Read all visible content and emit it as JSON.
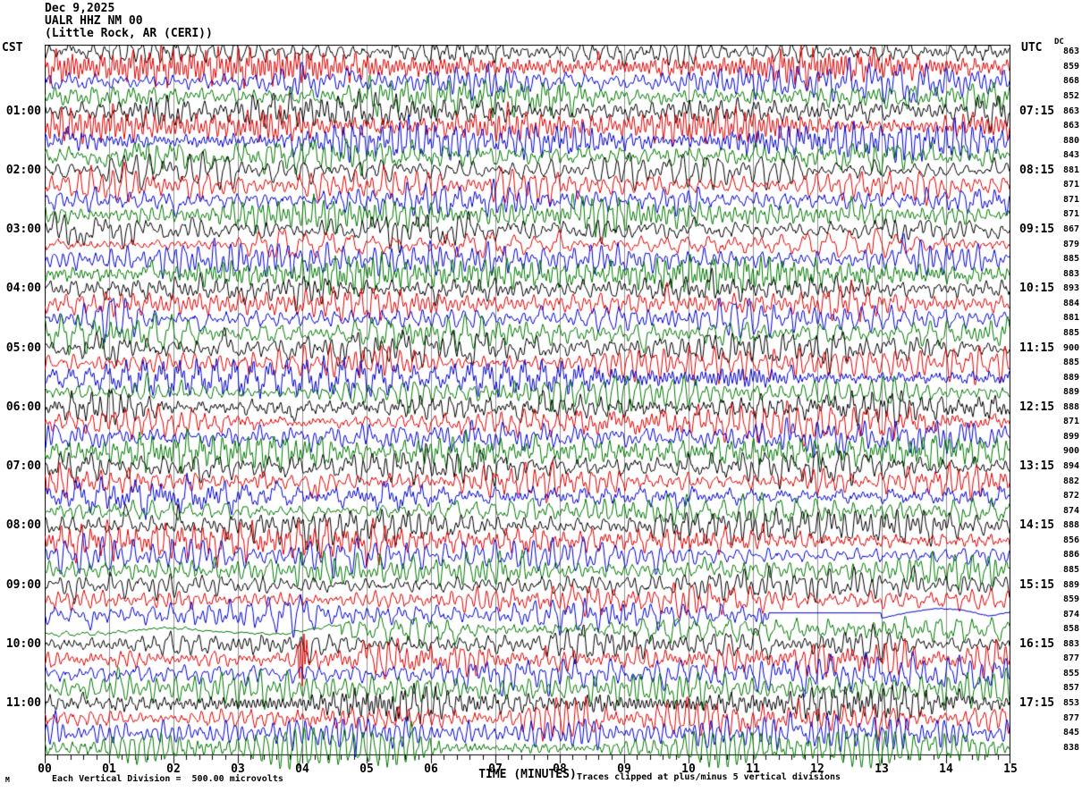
{
  "header": {
    "date": "Dec 9,2025",
    "station": "UALR HHZ NM 00",
    "location": "(Little Rock, AR (CERI))"
  },
  "axis": {
    "left_timezone": "CST",
    "right_timezone": "UTC",
    "dc_column_label": "DC",
    "x_axis_title": "TIME (MINUTES)",
    "x_tick_labels": [
      "00",
      "01",
      "02",
      "03",
      "04",
      "05",
      "06",
      "07",
      "08",
      "09",
      "10",
      "11",
      "12",
      "13",
      "14",
      "15"
    ]
  },
  "footer": {
    "scale_note": "Each Vertical Division =  500.00 microvolts",
    "clip_note": "Traces clipped at plus/minus 5 vertical divisions",
    "corner_mark": "M"
  },
  "chart_data": {
    "type": "line",
    "subtype": "helicorder-seismogram",
    "title": "UALR HHZ NM 00 (Little Rock, AR (CERI)) Dec 9,2025",
    "date": "Dec 9,2025",
    "station": "UALR HHZ NM 00",
    "station_name": "Little Rock, AR (CERI)",
    "minutes_per_line": 15,
    "x_range_minutes": [
      0,
      15
    ],
    "y_scale_microvolts_per_division": 500.0,
    "clip_divisions": 5,
    "grid": "vertical gray line each minute",
    "grid_color": "#909090",
    "trace_color_cycle": [
      "black",
      "red",
      "blue",
      "green"
    ],
    "trace_colors": {
      "black": "#000000",
      "red": "#dd0000",
      "blue": "#0000cc",
      "green": "#007700"
    },
    "left_time_labels": [
      "01:00",
      "02:00",
      "03:00",
      "04:00",
      "05:00",
      "06:00",
      "07:00",
      "08:00",
      "09:00",
      "10:00",
      "11:00"
    ],
    "right_time_labels": [
      "07:15",
      "08:15",
      "09:15",
      "10:15",
      "11:15",
      "12:15",
      "13:15",
      "14:15",
      "15:15",
      "16:15",
      "17:15"
    ],
    "rows": [
      {
        "cst": "",
        "utc": "",
        "dc": 863,
        "color": "black"
      },
      {
        "cst": "",
        "utc": "",
        "dc": 859,
        "color": "red"
      },
      {
        "cst": "",
        "utc": "",
        "dc": 868,
        "color": "blue"
      },
      {
        "cst": "",
        "utc": "",
        "dc": 852,
        "color": "green"
      },
      {
        "cst": "01:00",
        "utc": "07:15",
        "dc": 863,
        "color": "black"
      },
      {
        "cst": "",
        "utc": "",
        "dc": 863,
        "color": "red"
      },
      {
        "cst": "",
        "utc": "",
        "dc": 880,
        "color": "blue"
      },
      {
        "cst": "",
        "utc": "",
        "dc": 843,
        "color": "green"
      },
      {
        "cst": "02:00",
        "utc": "08:15",
        "dc": 881,
        "color": "black"
      },
      {
        "cst": "",
        "utc": "",
        "dc": 871,
        "color": "red"
      },
      {
        "cst": "",
        "utc": "",
        "dc": 871,
        "color": "blue"
      },
      {
        "cst": "",
        "utc": "",
        "dc": 871,
        "color": "green"
      },
      {
        "cst": "03:00",
        "utc": "09:15",
        "dc": 867,
        "color": "black"
      },
      {
        "cst": "",
        "utc": "",
        "dc": 879,
        "color": "red"
      },
      {
        "cst": "",
        "utc": "",
        "dc": 885,
        "color": "blue"
      },
      {
        "cst": "",
        "utc": "",
        "dc": 883,
        "color": "green"
      },
      {
        "cst": "04:00",
        "utc": "10:15",
        "dc": 893,
        "color": "black"
      },
      {
        "cst": "",
        "utc": "",
        "dc": 884,
        "color": "red"
      },
      {
        "cst": "",
        "utc": "",
        "dc": 881,
        "color": "blue"
      },
      {
        "cst": "",
        "utc": "",
        "dc": 885,
        "color": "green"
      },
      {
        "cst": "05:00",
        "utc": "11:15",
        "dc": 900,
        "color": "black"
      },
      {
        "cst": "",
        "utc": "",
        "dc": 885,
        "color": "red"
      },
      {
        "cst": "",
        "utc": "",
        "dc": 889,
        "color": "blue"
      },
      {
        "cst": "",
        "utc": "",
        "dc": 889,
        "color": "green"
      },
      {
        "cst": "06:00",
        "utc": "12:15",
        "dc": 888,
        "color": "black"
      },
      {
        "cst": "",
        "utc": "",
        "dc": 871,
        "color": "red"
      },
      {
        "cst": "",
        "utc": "",
        "dc": 899,
        "color": "blue"
      },
      {
        "cst": "",
        "utc": "",
        "dc": 900,
        "color": "green"
      },
      {
        "cst": "07:00",
        "utc": "13:15",
        "dc": 894,
        "color": "black"
      },
      {
        "cst": "",
        "utc": "",
        "dc": 882,
        "color": "red"
      },
      {
        "cst": "",
        "utc": "",
        "dc": 872,
        "color": "blue"
      },
      {
        "cst": "",
        "utc": "",
        "dc": 874,
        "color": "green"
      },
      {
        "cst": "08:00",
        "utc": "14:15",
        "dc": 888,
        "color": "black"
      },
      {
        "cst": "",
        "utc": "",
        "dc": 856,
        "color": "red"
      },
      {
        "cst": "",
        "utc": "",
        "dc": 886,
        "color": "blue"
      },
      {
        "cst": "",
        "utc": "",
        "dc": 885,
        "color": "green"
      },
      {
        "cst": "09:00",
        "utc": "15:15",
        "dc": 889,
        "color": "black"
      },
      {
        "cst": "",
        "utc": "",
        "dc": 859,
        "color": "red"
      },
      {
        "cst": "",
        "utc": "",
        "dc": 874,
        "color": "blue"
      },
      {
        "cst": "",
        "utc": "",
        "dc": 858,
        "color": "green"
      },
      {
        "cst": "10:00",
        "utc": "16:15",
        "dc": 883,
        "color": "black"
      },
      {
        "cst": "",
        "utc": "",
        "dc": 877,
        "color": "red"
      },
      {
        "cst": "",
        "utc": "",
        "dc": 855,
        "color": "blue"
      },
      {
        "cst": "",
        "utc": "",
        "dc": 857,
        "color": "green"
      },
      {
        "cst": "11:00",
        "utc": "17:15",
        "dc": 853,
        "color": "black"
      },
      {
        "cst": "",
        "utc": "",
        "dc": 877,
        "color": "red"
      },
      {
        "cst": "",
        "utc": "",
        "dc": 845,
        "color": "blue"
      },
      {
        "cst": "",
        "utc": "",
        "dc": 838,
        "color": "green"
      }
    ],
    "annotations": [
      {
        "row": 42,
        "type": "clipped-spike",
        "minute": 4.0,
        "note": "large clipped red transient on 10:15 CST trace"
      },
      {
        "row": 39,
        "type": "flatline-dropout",
        "minute_start": 11.25,
        "minute_end": 13.0,
        "note": "blue trace flatlines then drifts on 09:30 CST trace"
      },
      {
        "row": 40,
        "type": "quiet-drift",
        "minute_start": 0,
        "minute_end": 4.6,
        "note": "green trace quiet with drift on 09:45 CST trace"
      }
    ]
  }
}
